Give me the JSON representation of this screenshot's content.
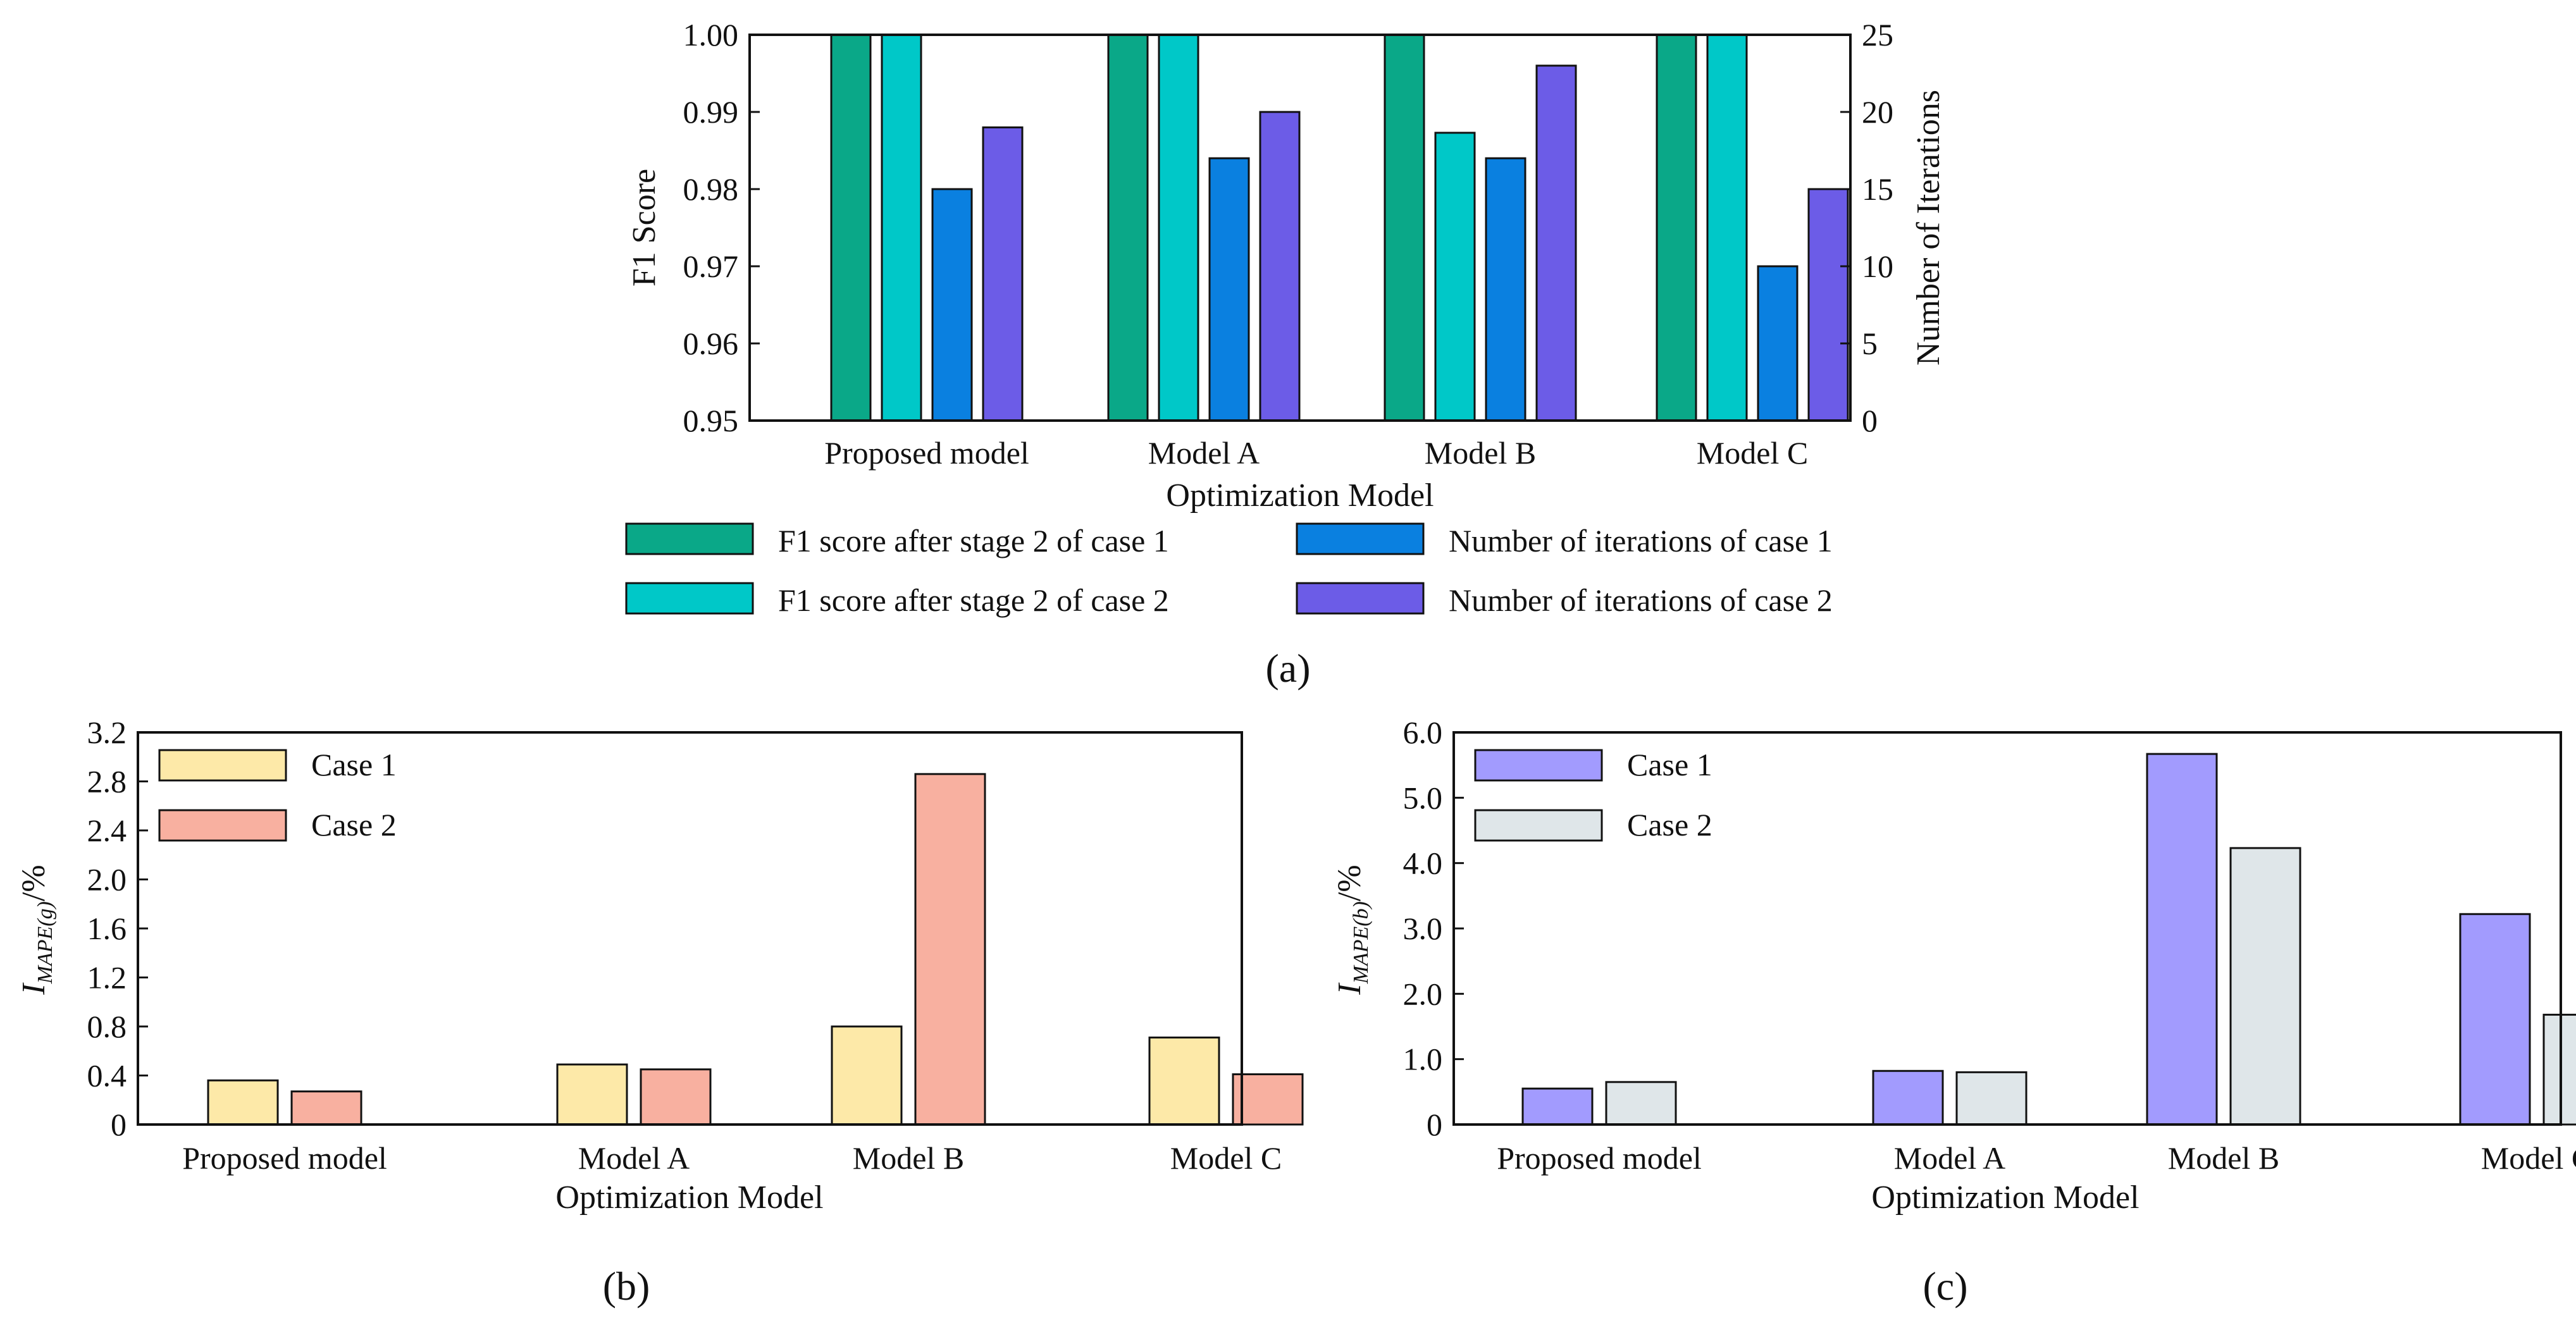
{
  "chart_data": [
    {
      "id": "a",
      "type": "bar",
      "caption": "(a)",
      "categories": [
        "Proposed model",
        "Model A",
        "Model B",
        "Model C"
      ],
      "xlabel": "Optimization Model",
      "ylabel": "F1 Score",
      "ylabel_right": "Number of Iterations",
      "ylim": [
        0.95,
        1.0
      ],
      "ylim_right": [
        0,
        25
      ],
      "yticks": [
        "0.95",
        "0.96",
        "0.97",
        "0.98",
        "0.99",
        "1.00"
      ],
      "yticks_right": [
        "0",
        "5",
        "10",
        "15",
        "20",
        "25"
      ],
      "series": [
        {
          "name": "F1 score after stage 2 of case 1",
          "axis": "left",
          "color": "#0aa888",
          "values": [
            1.0,
            1.0,
            1.0,
            1.0
          ]
        },
        {
          "name": "F1 score after stage 2 of case 2",
          "axis": "left",
          "color": "#00c8c8",
          "values": [
            1.0,
            1.0,
            0.9873,
            1.0
          ]
        },
        {
          "name": "Number of iterations of case 1",
          "axis": "right",
          "color": "#0a80e0",
          "values": [
            15,
            17,
            17,
            10
          ]
        },
        {
          "name": "Number of iterations of case 2",
          "axis": "right",
          "color": "#6c5ce7",
          "values": [
            19,
            20,
            23,
            15
          ]
        }
      ]
    },
    {
      "id": "b",
      "type": "bar",
      "caption": "(b)",
      "categories": [
        "Proposed model",
        "Model A",
        "Model B",
        "Model C"
      ],
      "xlabel": "Optimization Model",
      "ylabel_main": "I",
      "ylabel_sub": "MAPE(g)",
      "ylabel_suffix": "/%",
      "ylim": [
        0,
        3.2
      ],
      "yticks": [
        "0",
        "0.4",
        "0.8",
        "1.2",
        "1.6",
        "2.0",
        "2.4",
        "2.8",
        "3.2"
      ],
      "series": [
        {
          "name": "Case 1",
          "color": "#fde9a8",
          "values": [
            0.36,
            0.49,
            0.8,
            0.71
          ]
        },
        {
          "name": "Case 2",
          "color": "#f8b0a0",
          "values": [
            0.27,
            0.45,
            2.86,
            0.41
          ]
        }
      ]
    },
    {
      "id": "c",
      "type": "bar",
      "caption": "(c)",
      "categories": [
        "Proposed model",
        "Model A",
        "Model B",
        "Model C"
      ],
      "xlabel": "Optimization Model",
      "ylabel_main": "I",
      "ylabel_sub": "MAPE(b)",
      "ylabel_suffix": "/%",
      "ylim": [
        0,
        6.0
      ],
      "yticks": [
        "0",
        "1.0",
        "2.0",
        "3.0",
        "4.0",
        "5.0",
        "6.0"
      ],
      "series": [
        {
          "name": "Case 1",
          "color": "#a29bfe",
          "values": [
            0.55,
            0.82,
            5.67,
            3.22
          ]
        },
        {
          "name": "Case 2",
          "color": "#dfe6e9",
          "values": [
            0.65,
            0.8,
            4.23,
            1.68
          ]
        }
      ]
    }
  ]
}
